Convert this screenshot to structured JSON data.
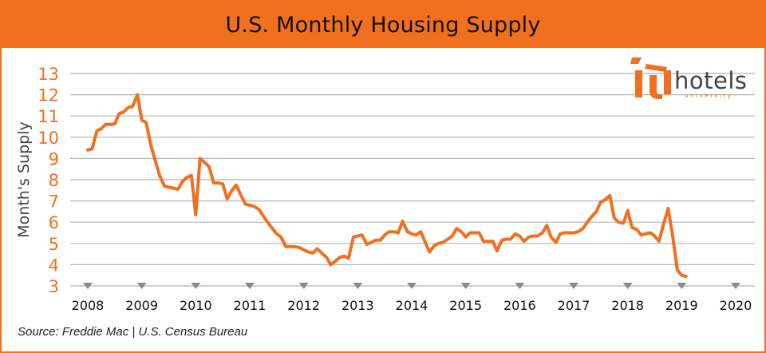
{
  "header": {
    "title": "U.S. Monthly Housing Supply"
  },
  "source": "Source: Freddie Mac | U.S. Census Bureau",
  "logo": {
    "word": "hotels",
    "sub": "university"
  },
  "colors": {
    "accent": "#f07020",
    "line": "#f07020",
    "grid": "#b5b5b5",
    "axis_tick": "#8a8a8a",
    "text": "#111111"
  },
  "chart_data": {
    "type": "line",
    "title": "U.S. Monthly Housing Supply",
    "ylabel": "Month's Supply",
    "xlabel": "",
    "ylim": [
      3,
      13
    ],
    "yticks": [
      3,
      4,
      5,
      6,
      7,
      8,
      9,
      10,
      11,
      12,
      13
    ],
    "xlim": [
      2008,
      2020
    ],
    "xticks": [
      2008,
      2009,
      2010,
      2011,
      2012,
      2013,
      2014,
      2015,
      2016,
      2017,
      2018,
      2019,
      2020
    ],
    "grid": true,
    "series": [
      {
        "points": [
          [
            2008.0,
            9.4
          ],
          [
            2008.08,
            9.45
          ],
          [
            2008.17,
            10.3
          ],
          [
            2008.25,
            10.4
          ],
          [
            2008.33,
            10.6
          ],
          [
            2008.42,
            10.6
          ],
          [
            2008.5,
            10.62
          ],
          [
            2008.58,
            11.1
          ],
          [
            2008.67,
            11.2
          ],
          [
            2008.75,
            11.4
          ],
          [
            2008.83,
            11.45
          ],
          [
            2008.92,
            12.0
          ],
          [
            2009.0,
            10.8
          ],
          [
            2009.08,
            10.7
          ],
          [
            2009.17,
            9.6
          ],
          [
            2009.25,
            8.9
          ],
          [
            2009.33,
            8.2
          ],
          [
            2009.42,
            7.7
          ],
          [
            2009.5,
            7.65
          ],
          [
            2009.58,
            7.6
          ],
          [
            2009.67,
            7.55
          ],
          [
            2009.75,
            7.9
          ],
          [
            2009.83,
            8.1
          ],
          [
            2009.92,
            8.2
          ],
          [
            2010.0,
            6.35
          ],
          [
            2010.08,
            9.0
          ],
          [
            2010.17,
            8.8
          ],
          [
            2010.25,
            8.6
          ],
          [
            2010.33,
            7.85
          ],
          [
            2010.42,
            7.85
          ],
          [
            2010.5,
            7.8
          ],
          [
            2010.58,
            7.1
          ],
          [
            2010.67,
            7.5
          ],
          [
            2010.75,
            7.75
          ],
          [
            2010.83,
            7.3
          ],
          [
            2010.92,
            6.85
          ],
          [
            2011.0,
            6.8
          ],
          [
            2011.08,
            6.75
          ],
          [
            2011.17,
            6.6
          ],
          [
            2011.25,
            6.3
          ],
          [
            2011.33,
            6.0
          ],
          [
            2011.42,
            5.7
          ],
          [
            2011.5,
            5.45
          ],
          [
            2011.58,
            5.3
          ],
          [
            2011.67,
            4.85
          ],
          [
            2011.75,
            4.85
          ],
          [
            2011.83,
            4.85
          ],
          [
            2011.92,
            4.8
          ],
          [
            2012.0,
            4.7
          ],
          [
            2012.08,
            4.6
          ],
          [
            2012.17,
            4.55
          ],
          [
            2012.25,
            4.75
          ],
          [
            2012.33,
            4.55
          ],
          [
            2012.42,
            4.35
          ],
          [
            2012.5,
            4.0
          ],
          [
            2012.58,
            4.15
          ],
          [
            2012.67,
            4.35
          ],
          [
            2012.75,
            4.4
          ],
          [
            2012.83,
            4.3
          ],
          [
            2012.92,
            5.3
          ],
          [
            2013.0,
            5.35
          ],
          [
            2013.08,
            5.4
          ],
          [
            2013.17,
            4.95
          ],
          [
            2013.25,
            5.05
          ],
          [
            2013.33,
            5.15
          ],
          [
            2013.42,
            5.15
          ],
          [
            2013.5,
            5.4
          ],
          [
            2013.58,
            5.55
          ],
          [
            2013.67,
            5.55
          ],
          [
            2013.75,
            5.5
          ],
          [
            2013.83,
            6.05
          ],
          [
            2013.92,
            5.55
          ],
          [
            2014.0,
            5.45
          ],
          [
            2014.08,
            5.4
          ],
          [
            2014.17,
            5.55
          ],
          [
            2014.25,
            5.05
          ],
          [
            2014.33,
            4.6
          ],
          [
            2014.42,
            4.9
          ],
          [
            2014.5,
            5.0
          ],
          [
            2014.58,
            5.05
          ],
          [
            2014.67,
            5.2
          ],
          [
            2014.75,
            5.35
          ],
          [
            2014.83,
            5.7
          ],
          [
            2014.92,
            5.55
          ],
          [
            2015.0,
            5.3
          ],
          [
            2015.08,
            5.5
          ],
          [
            2015.17,
            5.5
          ],
          [
            2015.25,
            5.5
          ],
          [
            2015.33,
            5.1
          ],
          [
            2015.42,
            5.1
          ],
          [
            2015.5,
            5.1
          ],
          [
            2015.58,
            4.65
          ],
          [
            2015.67,
            5.15
          ],
          [
            2015.75,
            5.2
          ],
          [
            2015.83,
            5.2
          ],
          [
            2015.92,
            5.45
          ],
          [
            2016.0,
            5.35
          ],
          [
            2016.08,
            5.1
          ],
          [
            2016.17,
            5.3
          ],
          [
            2016.25,
            5.35
          ],
          [
            2016.33,
            5.35
          ],
          [
            2016.42,
            5.5
          ],
          [
            2016.5,
            5.85
          ],
          [
            2016.58,
            5.3
          ],
          [
            2016.67,
            5.05
          ],
          [
            2016.75,
            5.45
          ],
          [
            2016.83,
            5.5
          ],
          [
            2016.92,
            5.5
          ],
          [
            2017.0,
            5.5
          ],
          [
            2017.08,
            5.55
          ],
          [
            2017.17,
            5.7
          ],
          [
            2017.25,
            6.0
          ],
          [
            2017.33,
            6.25
          ],
          [
            2017.42,
            6.5
          ],
          [
            2017.5,
            6.95
          ],
          [
            2017.58,
            7.05
          ],
          [
            2017.67,
            7.25
          ],
          [
            2017.75,
            6.2
          ],
          [
            2017.83,
            6.0
          ],
          [
            2017.92,
            5.95
          ],
          [
            2018.0,
            6.55
          ],
          [
            2018.08,
            5.75
          ],
          [
            2018.17,
            5.65
          ],
          [
            2018.25,
            5.4
          ],
          [
            2018.33,
            5.45
          ],
          [
            2018.42,
            5.5
          ],
          [
            2018.5,
            5.35
          ],
          [
            2018.58,
            5.1
          ],
          [
            2018.67,
            5.95
          ],
          [
            2018.75,
            6.65
          ],
          [
            2018.83,
            5.4
          ],
          [
            2018.92,
            3.75
          ],
          [
            2019.0,
            3.5
          ],
          [
            2019.08,
            3.45
          ]
        ]
      }
    ]
  }
}
